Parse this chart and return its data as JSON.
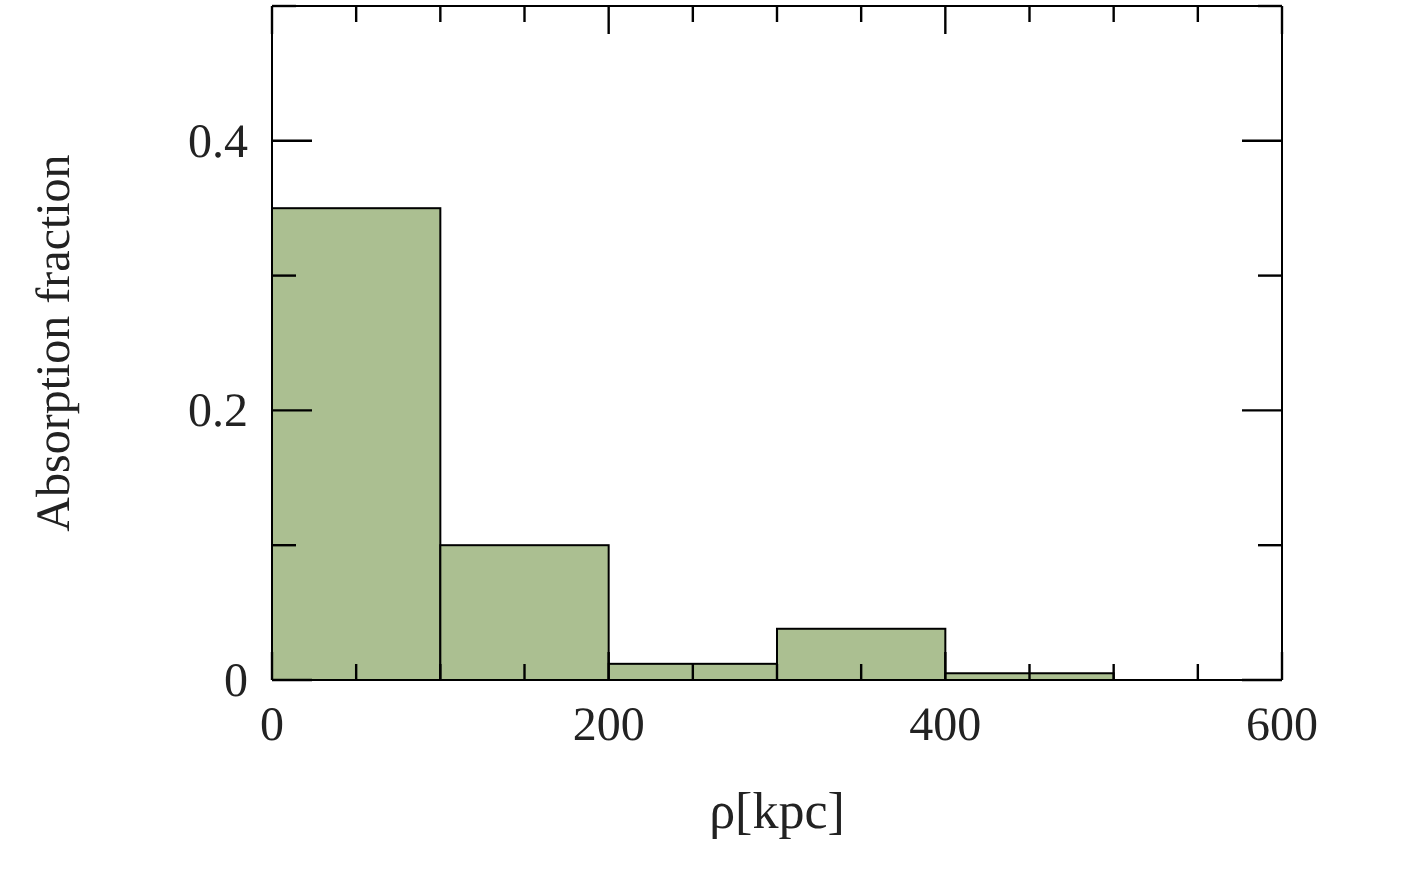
{
  "chart_data": {
    "type": "histogram",
    "xlabel": "ρ[kpc]",
    "ylabel": "Absorption fraction",
    "bins": [
      0,
      100,
      200,
      300,
      400,
      500,
      600
    ],
    "values": [
      0.35,
      0.1,
      0.012,
      0.038,
      0.005,
      0
    ],
    "color": "#abbf91",
    "xlim": [
      0,
      600
    ],
    "xticks": [
      0,
      {
        "value": 50,
        "label": null
      },
      {
        "value": 100,
        "label": null
      },
      {
        "value": 150,
        "label": null
      },
      200,
      {
        "value": 250,
        "label": null
      },
      {
        "value": 300,
        "label": null
      },
      {
        "value": 350,
        "label": null
      },
      400,
      {
        "value": 450,
        "label": null
      },
      {
        "value": 500,
        "label": null
      },
      {
        "value": 550,
        "label": null
      },
      600
    ],
    "ylim": [
      0,
      0.5
    ],
    "yticks": [
      0,
      {
        "value": 0.1,
        "label": null
      },
      0.2,
      {
        "value": 0.3,
        "label": null
      },
      0.4,
      {
        "value": 0.5,
        "label": null
      }
    ],
    "grid": false
  }
}
